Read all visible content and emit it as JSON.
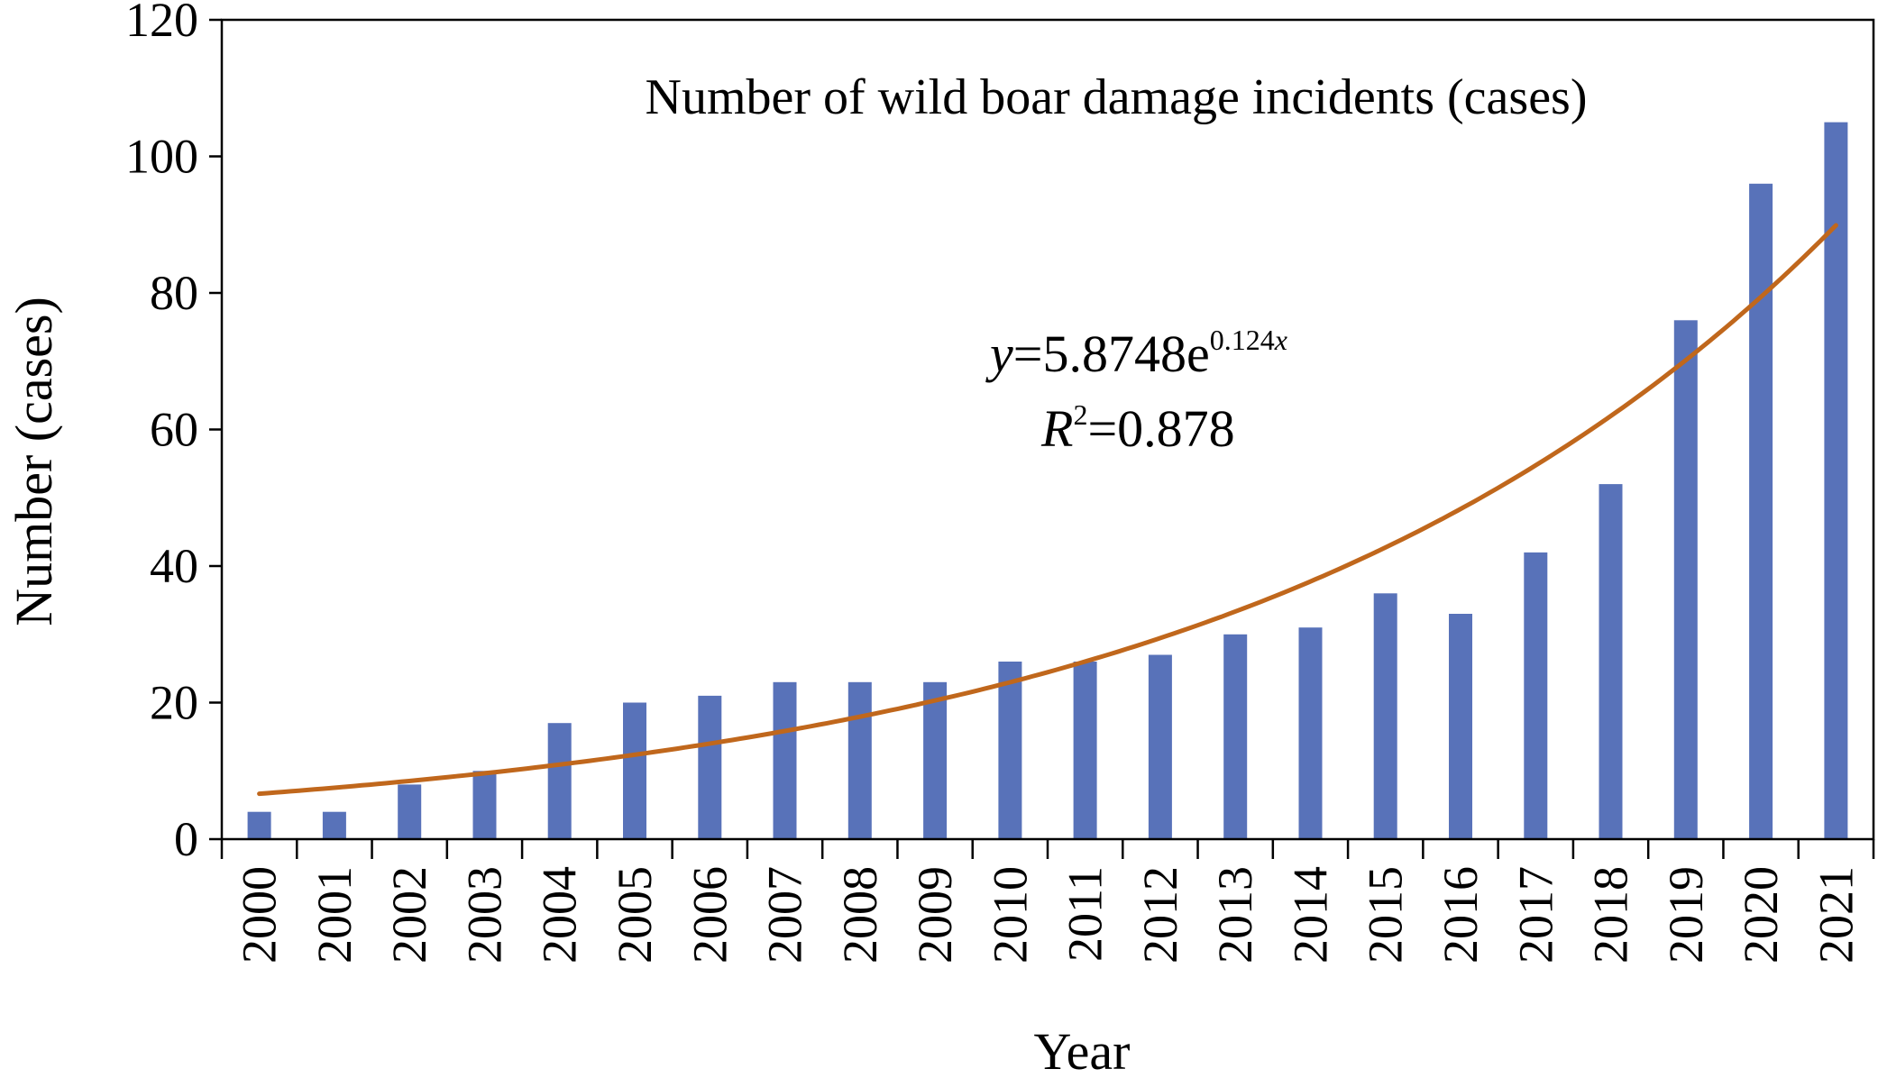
{
  "chart_data": {
    "type": "bar",
    "title": "Number of wild boar damage incidents (cases)",
    "xlabel": "Year",
    "ylabel": "Number (cases)",
    "ylim": [
      0,
      120
    ],
    "yticks": [
      "0",
      "20",
      "40",
      "60",
      "80",
      "100",
      "120"
    ],
    "categories": [
      "2000",
      "2001",
      "2002",
      "2003",
      "2004",
      "2005",
      "2006",
      "2007",
      "2008",
      "2009",
      "2010",
      "2011",
      "2012",
      "2013",
      "2014",
      "2015",
      "2016",
      "2017",
      "2018",
      "2019",
      "2020",
      "2021"
    ],
    "values": [
      4,
      4,
      8,
      10,
      17,
      20,
      21,
      23,
      23,
      23,
      26,
      26,
      27,
      30,
      31,
      36,
      33,
      42,
      52,
      76,
      96,
      105
    ],
    "trendline": {
      "type": "exponential",
      "coefficient": 5.8748,
      "exponent": 0.124,
      "equation_parts": {
        "y": "y",
        "eq_coef": "=5.8748e",
        "exp": "0.124",
        "x": "x"
      },
      "r2_parts": {
        "r": "R",
        "sup": "2",
        "val": "=0.878"
      }
    },
    "grid": false,
    "legend": "none",
    "colors": {
      "bar": "#5872b9",
      "trend": "#c0671c",
      "axis": "#000000"
    }
  }
}
